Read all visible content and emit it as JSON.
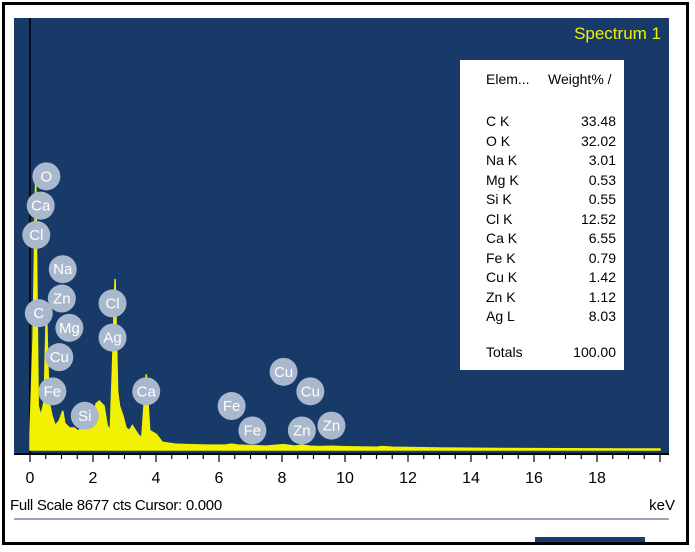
{
  "spectrum_title": "Spectrum 1",
  "table": {
    "header_element": "Elem...",
    "header_value": "Weight% /",
    "rows": [
      {
        "el": "C K",
        "val": "33.48"
      },
      {
        "el": "O K",
        "val": "32.02"
      },
      {
        "el": "Na K",
        "val": "3.01"
      },
      {
        "el": "Mg K",
        "val": "0.53"
      },
      {
        "el": "Si K",
        "val": "0.55"
      },
      {
        "el": "Cl K",
        "val": "12.52"
      },
      {
        "el": "Ca K",
        "val": "6.55"
      },
      {
        "el": "Fe K",
        "val": "0.79"
      },
      {
        "el": "Cu K",
        "val": "1.42"
      },
      {
        "el": "Zn K",
        "val": "1.12"
      },
      {
        "el": "Ag L",
        "val": "8.03"
      }
    ],
    "total_label": "Totals",
    "total_value": "100.00"
  },
  "footer": {
    "full_scale_text": "Full Scale 8677 cts  Cursor: 0.000",
    "unit": "keV"
  },
  "colors": {
    "background": "#173a68",
    "spectrum": "#f2f200",
    "label_badge": "#a9b8cc",
    "title": "#f2f200"
  },
  "chart_data": {
    "type": "line",
    "title": "Spectrum 1",
    "xlabel": "keV",
    "xlim": [
      0,
      20
    ],
    "ylim": [
      0,
      8677
    ],
    "x_ticks": [
      "0",
      "2",
      "4",
      "6",
      "8",
      "10",
      "12",
      "14",
      "16",
      "18"
    ],
    "series": [
      {
        "points": [
          [
            0.0,
            300
          ],
          [
            0.1,
            2300
          ],
          [
            0.18,
            5600
          ],
          [
            0.26,
            900
          ],
          [
            0.35,
            700
          ],
          [
            0.45,
            1000
          ],
          [
            0.52,
            2900
          ],
          [
            0.6,
            1000
          ],
          [
            0.7,
            700
          ],
          [
            0.8,
            500
          ],
          [
            0.93,
            600
          ],
          [
            1.04,
            800
          ],
          [
            1.1,
            550
          ],
          [
            1.25,
            450
          ],
          [
            1.4,
            450
          ],
          [
            1.55,
            380
          ],
          [
            1.74,
            700
          ],
          [
            1.85,
            500
          ],
          [
            2.0,
            700
          ],
          [
            2.1,
            950
          ],
          [
            2.2,
            1000
          ],
          [
            2.35,
            900
          ],
          [
            2.45,
            500
          ],
          [
            2.55,
            400
          ],
          [
            2.62,
            1700
          ],
          [
            2.7,
            3500
          ],
          [
            2.78,
            1200
          ],
          [
            2.84,
            900
          ],
          [
            2.95,
            700
          ],
          [
            3.05,
            450
          ],
          [
            3.15,
            400
          ],
          [
            3.25,
            500
          ],
          [
            3.35,
            400
          ],
          [
            3.45,
            300
          ],
          [
            3.55,
            250
          ],
          [
            3.69,
            1550
          ],
          [
            3.8,
            400
          ],
          [
            4.01,
            320
          ],
          [
            4.2,
            160
          ],
          [
            4.6,
            120
          ],
          [
            5.0,
            110
          ],
          [
            5.6,
            100
          ],
          [
            6.2,
            100
          ],
          [
            6.4,
            120
          ],
          [
            6.6,
            100
          ],
          [
            7.06,
            90
          ],
          [
            7.5,
            80
          ],
          [
            8.05,
            110
          ],
          [
            8.4,
            80
          ],
          [
            8.63,
            100
          ],
          [
            8.9,
            75
          ],
          [
            9.2,
            70
          ],
          [
            9.57,
            75
          ],
          [
            10.0,
            65
          ],
          [
            11.0,
            55
          ],
          [
            11.2,
            70
          ],
          [
            11.5,
            55
          ],
          [
            13.0,
            40
          ],
          [
            15.0,
            30
          ],
          [
            17.0,
            25
          ],
          [
            19.0,
            20
          ],
          [
            20.0,
            20
          ]
        ]
      }
    ],
    "peak_labels": [
      {
        "text": "O",
        "x": 0.52,
        "y": 5600
      },
      {
        "text": "Ca",
        "x": 0.34,
        "y": 5000
      },
      {
        "text": "Cl",
        "x": 0.2,
        "y": 4400
      },
      {
        "text": "Na",
        "x": 1.04,
        "y": 3700
      },
      {
        "text": "Zn",
        "x": 1.01,
        "y": 3100
      },
      {
        "text": "C",
        "x": 0.28,
        "y": 2800
      },
      {
        "text": "Mg",
        "x": 1.25,
        "y": 2500
      },
      {
        "text": "Cl",
        "x": 2.62,
        "y": 3000
      },
      {
        "text": "Ag",
        "x": 2.62,
        "y": 2300
      },
      {
        "text": "Cu",
        "x": 0.93,
        "y": 1900
      },
      {
        "text": "Fe",
        "x": 0.71,
        "y": 1200
      },
      {
        "text": "Si",
        "x": 1.74,
        "y": 700
      },
      {
        "text": "Ca",
        "x": 3.69,
        "y": 1200
      },
      {
        "text": "Fe",
        "x": 6.4,
        "y": 900
      },
      {
        "text": "Fe",
        "x": 7.06,
        "y": 400
      },
      {
        "text": "Cu",
        "x": 8.05,
        "y": 1600
      },
      {
        "text": "Cu",
        "x": 8.9,
        "y": 1200
      },
      {
        "text": "Zn",
        "x": 8.63,
        "y": 400
      },
      {
        "text": "Zn",
        "x": 9.57,
        "y": 500
      }
    ]
  }
}
